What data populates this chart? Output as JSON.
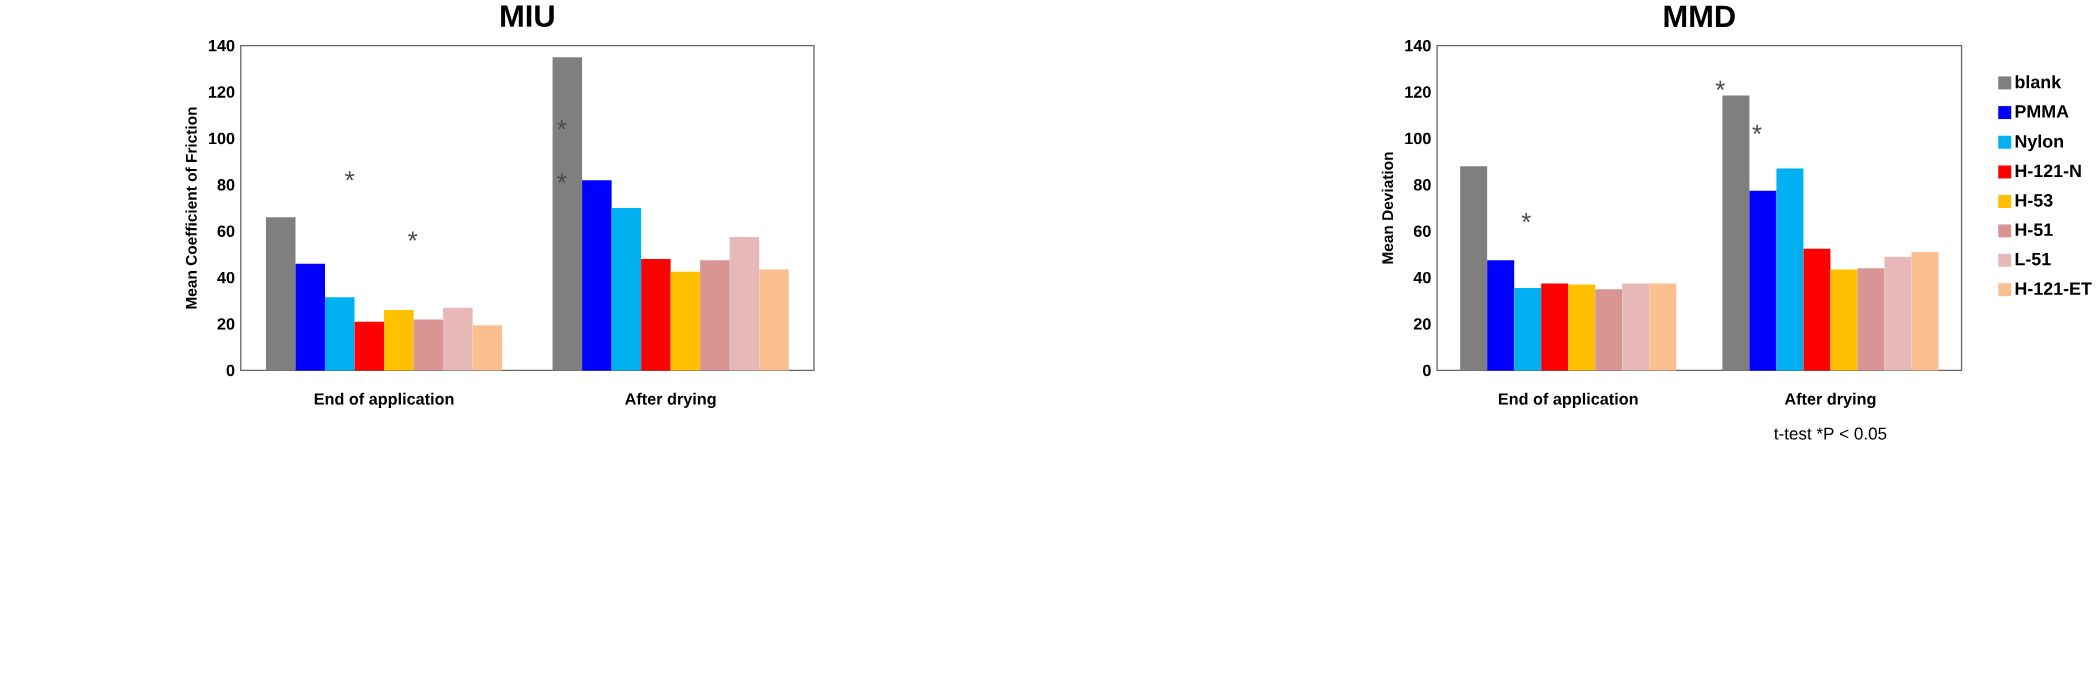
{
  "chart_data": [
    {
      "type": "bar",
      "title": "MIU",
      "ylabel": "Mean Coefficient of Friction",
      "categories": [
        "End of application",
        "After drying"
      ],
      "series": [
        {
          "color": "#7f7f7f",
          "values": [
            66,
            135
          ]
        },
        {
          "color": "#0000ff",
          "values": [
            46,
            82
          ]
        },
        {
          "color": "#00b0f0",
          "values": [
            31.5,
            70
          ]
        },
        {
          "color": "#ff0000",
          "values": [
            21,
            48
          ]
        },
        {
          "color": "#ffc000",
          "values": [
            26,
            42.5
          ]
        },
        {
          "color": "#d99594",
          "values": [
            22,
            47.5
          ]
        },
        {
          "color": "#e6b9b8",
          "values": [
            27,
            57.5
          ]
        },
        {
          "color": "#fac090",
          "values": [
            19.5,
            43.5
          ]
        }
      ],
      "ylim": [
        0,
        140
      ],
      "yticks": [
        0,
        20,
        40,
        60,
        80,
        100,
        120,
        140
      ],
      "legend": false,
      "annotations": [
        "*",
        "*",
        "*",
        "*"
      ]
    },
    {
      "type": "bar",
      "title": "MMD",
      "ylabel": "Mean Deviation",
      "categories": [
        "End of application",
        "After drying"
      ],
      "series": [
        {
          "name": "blank",
          "color": "#7f7f7f",
          "values": [
            88,
            118.5
          ]
        },
        {
          "name": "PMMA",
          "color": "#0000ff",
          "values": [
            47.5,
            77.5
          ]
        },
        {
          "name": "Nylon",
          "color": "#00b0f0",
          "values": [
            35.5,
            87
          ]
        },
        {
          "name": "H-121-N",
          "color": "#ff0000",
          "values": [
            37.5,
            52.5
          ]
        },
        {
          "name": "H-53",
          "color": "#ffc000",
          "values": [
            37,
            43.5
          ]
        },
        {
          "name": "H-51",
          "color": "#d99594",
          "values": [
            35,
            44
          ]
        },
        {
          "name": "L-51",
          "color": "#e6b9b8",
          "values": [
            37.5,
            49
          ]
        },
        {
          "name": "H-121-ET",
          "color": "#fac090",
          "values": [
            37.5,
            51
          ]
        }
      ],
      "ylim": [
        0,
        140
      ],
      "yticks": [
        0,
        20,
        40,
        60,
        80,
        100,
        120,
        140
      ],
      "legend": "right",
      "annotations": [
        "*",
        "*",
        "*",
        "t-test *P < 0.05"
      ]
    }
  ]
}
